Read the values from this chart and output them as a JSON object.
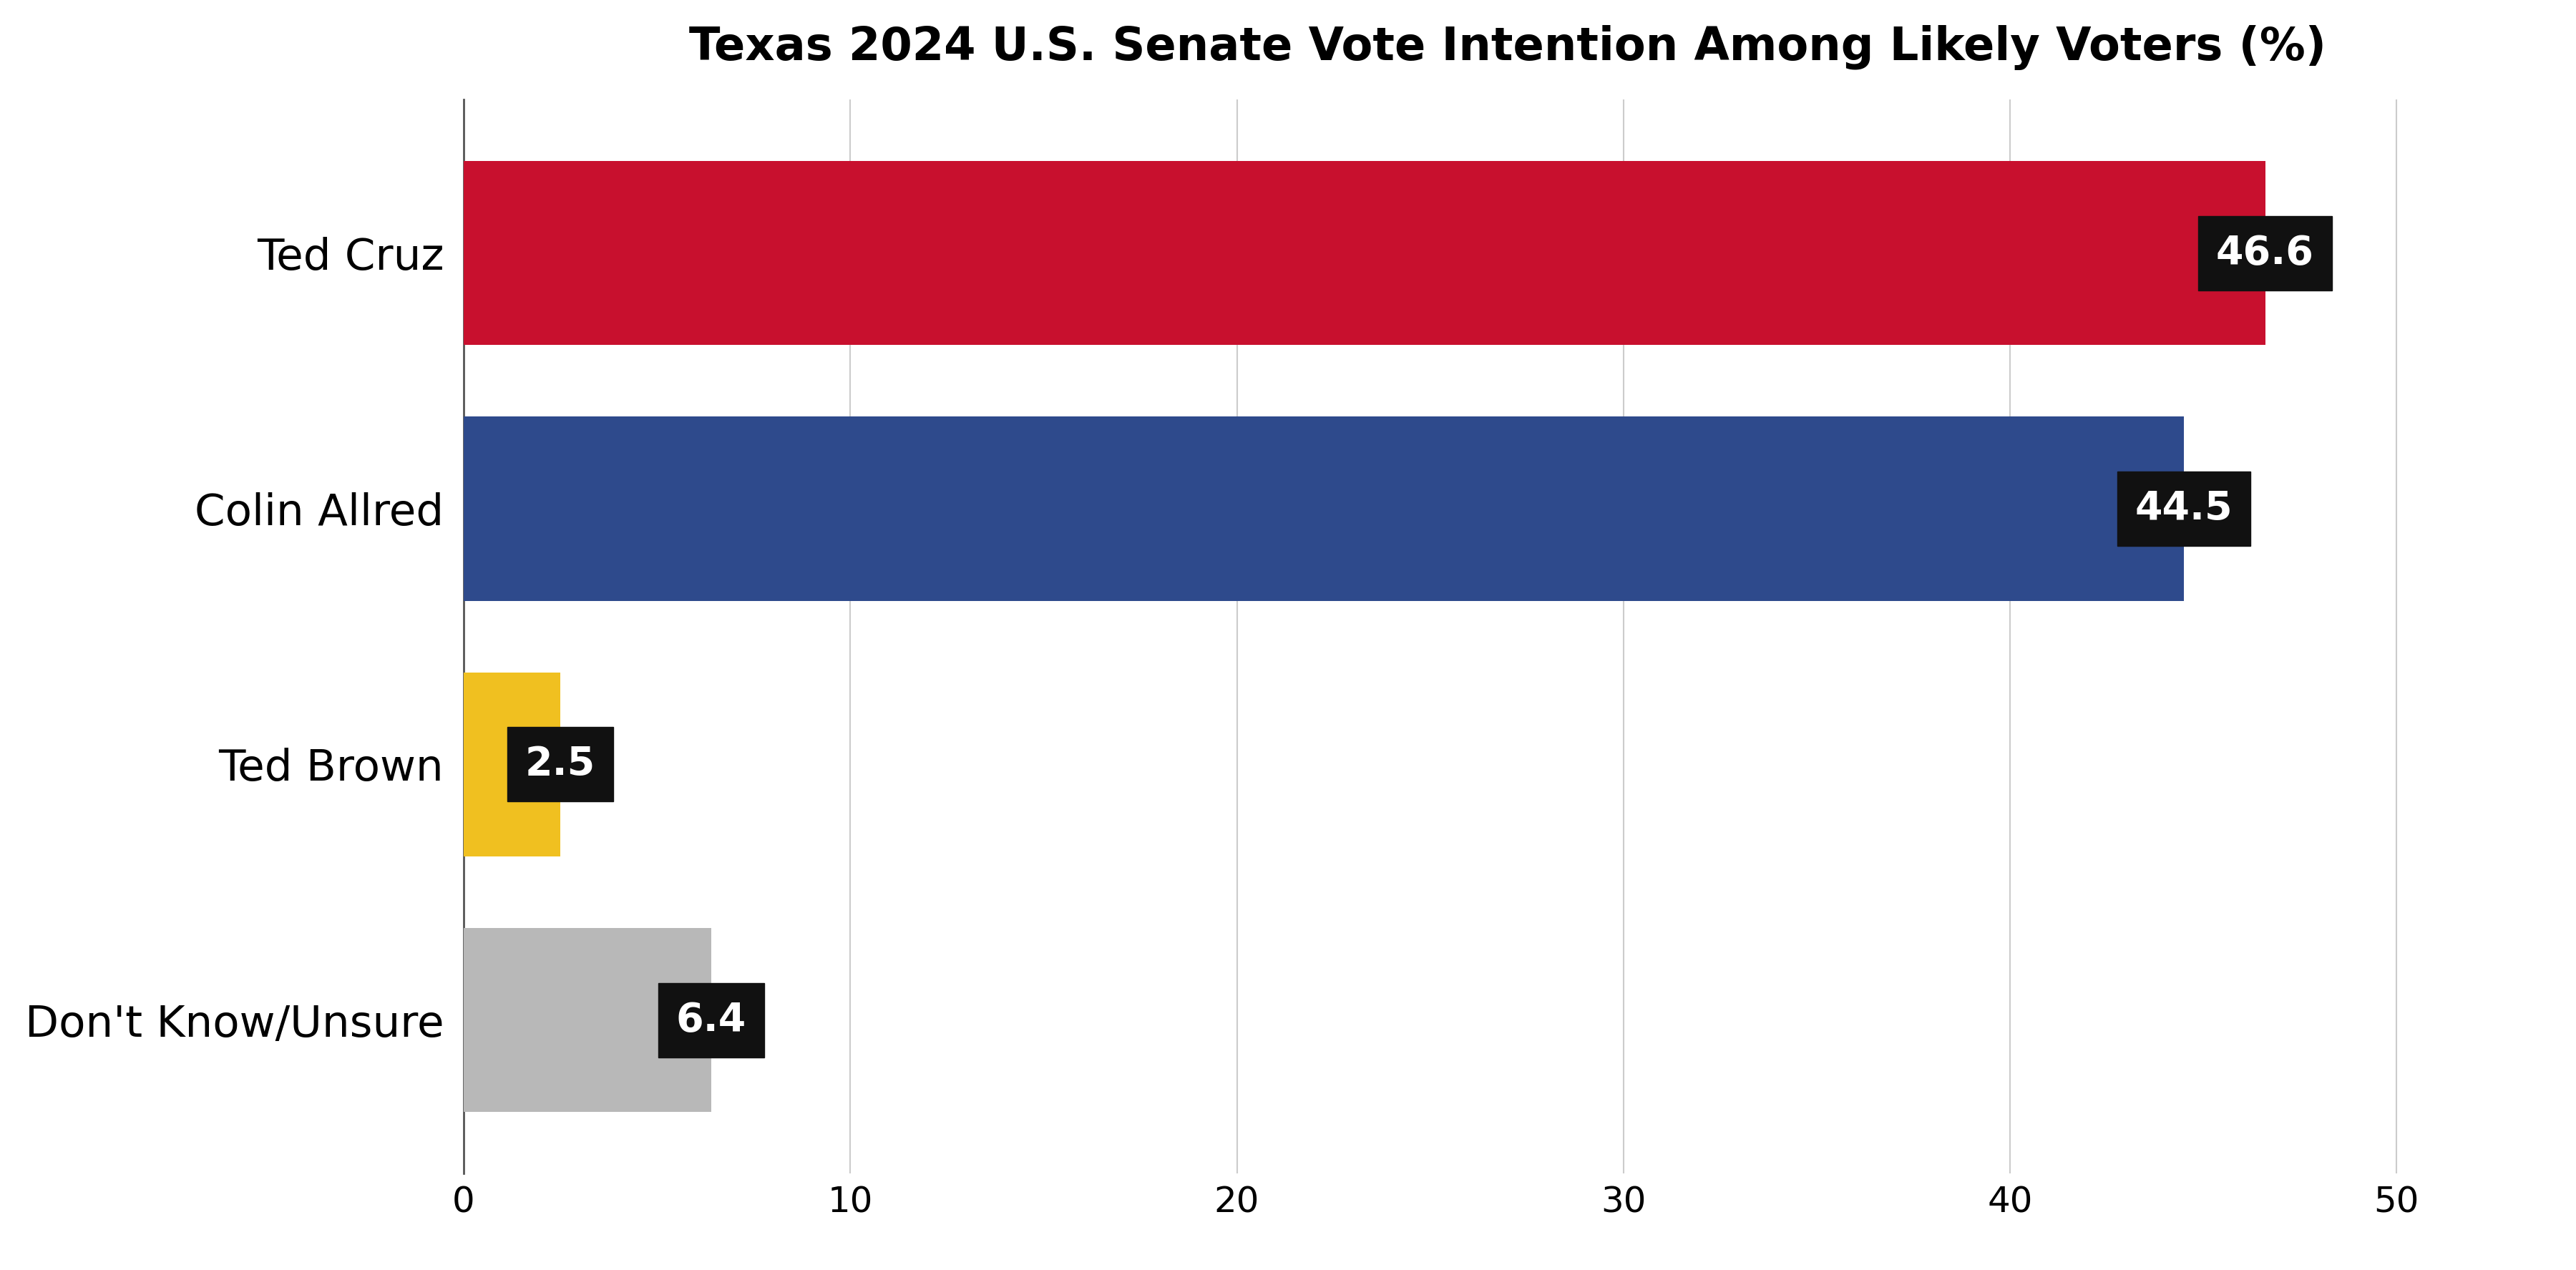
{
  "title": "Texas 2024 U.S. Senate Vote Intention Among Likely Voters (%)",
  "categories": [
    "Ted Cruz",
    "Colin Allred",
    "Ted Brown",
    "Don't Know/Unsure"
  ],
  "values": [
    46.6,
    44.5,
    2.5,
    6.4
  ],
  "bar_colors": [
    "#C8102E",
    "#2E4A8C",
    "#F0C020",
    "#B8B8B8"
  ],
  "label_values": [
    "46.6",
    "44.5",
    "2.5",
    "6.4"
  ],
  "xlim": [
    0,
    54
  ],
  "xticks": [
    0,
    10,
    20,
    30,
    40,
    50
  ],
  "background_color": "#FFFFFF",
  "title_fontsize": 46,
  "tick_fontsize": 36,
  "ylabel_fontsize": 44,
  "bar_label_fontsize": 40,
  "label_box_color": "#111111",
  "label_text_color": "#FFFFFF",
  "bar_height": 0.72
}
